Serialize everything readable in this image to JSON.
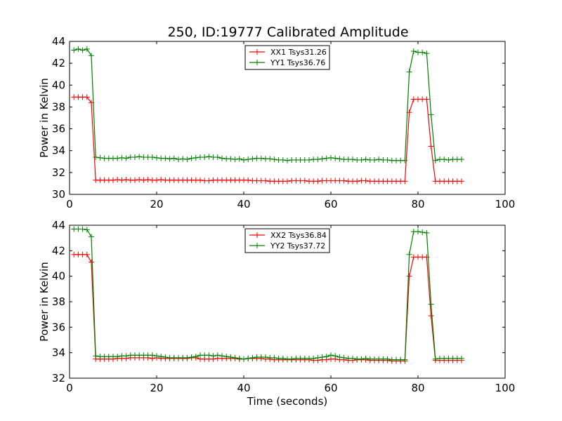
{
  "title": "250, ID:19777 Calibrated Amplitude",
  "chart_data": [
    {
      "type": "line",
      "ylabel": "Power in Kelvin",
      "xlabel": "",
      "xlim": [
        0,
        100
      ],
      "ylim": [
        30,
        44
      ],
      "xticks": [
        0,
        20,
        40,
        60,
        80,
        100
      ],
      "yticks": [
        30,
        32,
        34,
        36,
        38,
        40,
        42,
        44
      ],
      "legend_position": "top-center",
      "series": [
        {
          "name": "XX1 Tsys31.26",
          "color": "#ff0000",
          "x": [
            1,
            2,
            3,
            4,
            5,
            6,
            7,
            8,
            9,
            10,
            11,
            12,
            13,
            14,
            15,
            16,
            17,
            18,
            19,
            20,
            21,
            22,
            23,
            24,
            25,
            26,
            27,
            28,
            29,
            30,
            31,
            32,
            33,
            34,
            35,
            36,
            37,
            38,
            39,
            40,
            41,
            42,
            43,
            44,
            45,
            46,
            47,
            48,
            49,
            50,
            51,
            52,
            53,
            54,
            55,
            56,
            57,
            58,
            59,
            60,
            61,
            62,
            63,
            64,
            65,
            66,
            67,
            68,
            69,
            70,
            71,
            72,
            73,
            74,
            75,
            76,
            77,
            78,
            79,
            80,
            81,
            82,
            83,
            84,
            85,
            86,
            87,
            88,
            89,
            90
          ],
          "y": [
            38.9,
            38.9,
            38.9,
            38.9,
            38.4,
            31.3,
            31.3,
            31.3,
            31.3,
            31.3,
            31.35,
            31.3,
            31.35,
            31.3,
            31.3,
            31.35,
            31.3,
            31.35,
            31.3,
            31.3,
            31.35,
            31.3,
            31.3,
            31.3,
            31.3,
            31.3,
            31.3,
            31.3,
            31.3,
            31.3,
            31.25,
            31.25,
            31.3,
            31.3,
            31.3,
            31.3,
            31.3,
            31.3,
            31.3,
            31.3,
            31.3,
            31.25,
            31.25,
            31.25,
            31.25,
            31.2,
            31.2,
            31.2,
            31.2,
            31.2,
            31.25,
            31.25,
            31.25,
            31.25,
            31.2,
            31.2,
            31.2,
            31.25,
            31.25,
            31.25,
            31.25,
            31.25,
            31.25,
            31.2,
            31.2,
            31.2,
            31.25,
            31.25,
            31.2,
            31.2,
            31.2,
            31.2,
            31.2,
            31.2,
            31.2,
            31.2,
            31.2,
            37.5,
            38.7,
            38.7,
            38.7,
            38.7,
            34.4,
            31.2,
            31.2,
            31.2,
            31.2,
            31.2,
            31.2,
            31.2
          ]
        },
        {
          "name": "YY1 Tsys36.76",
          "color": "#008000",
          "x": [
            1,
            2,
            3,
            4,
            5,
            6,
            7,
            8,
            9,
            10,
            11,
            12,
            13,
            14,
            15,
            16,
            17,
            18,
            19,
            20,
            21,
            22,
            23,
            24,
            25,
            26,
            27,
            28,
            29,
            30,
            31,
            32,
            33,
            34,
            35,
            36,
            37,
            38,
            39,
            40,
            41,
            42,
            43,
            44,
            45,
            46,
            47,
            48,
            49,
            50,
            51,
            52,
            53,
            54,
            55,
            56,
            57,
            58,
            59,
            60,
            61,
            62,
            63,
            64,
            65,
            66,
            67,
            68,
            69,
            70,
            71,
            72,
            73,
            74,
            75,
            76,
            77,
            78,
            79,
            80,
            81,
            82,
            83,
            84,
            85,
            86,
            87,
            88,
            89,
            90
          ],
          "y": [
            43.2,
            43.3,
            43.2,
            43.3,
            42.7,
            33.4,
            33.35,
            33.3,
            33.3,
            33.3,
            33.3,
            33.35,
            33.3,
            33.4,
            33.4,
            33.45,
            33.4,
            33.4,
            33.4,
            33.35,
            33.3,
            33.3,
            33.25,
            33.3,
            33.2,
            33.25,
            33.2,
            33.3,
            33.35,
            33.4,
            33.4,
            33.45,
            33.4,
            33.4,
            33.3,
            33.25,
            33.25,
            33.2,
            33.25,
            33.15,
            33.2,
            33.25,
            33.3,
            33.3,
            33.25,
            33.25,
            33.2,
            33.15,
            33.15,
            33.1,
            33.15,
            33.15,
            33.15,
            33.15,
            33.15,
            33.2,
            33.2,
            33.25,
            33.3,
            33.35,
            33.3,
            33.25,
            33.2,
            33.2,
            33.2,
            33.15,
            33.15,
            33.2,
            33.15,
            33.15,
            33.2,
            33.15,
            33.15,
            33.1,
            33.1,
            33.1,
            33.1,
            41.2,
            43.1,
            43.0,
            43.0,
            42.9,
            37.3,
            33.1,
            33.2,
            33.2,
            33.15,
            33.2,
            33.2,
            33.2
          ]
        }
      ]
    },
    {
      "type": "line",
      "ylabel": "Power in Kelvin",
      "xlabel": "Time (seconds)",
      "xlim": [
        0,
        100
      ],
      "ylim": [
        32,
        44
      ],
      "xticks": [
        0,
        20,
        40,
        60,
        80,
        100
      ],
      "yticks": [
        32,
        34,
        36,
        38,
        40,
        42,
        44
      ],
      "legend_position": "top-center",
      "series": [
        {
          "name": "XX2 Tsys36.84",
          "color": "#ff0000",
          "x": [
            1,
            2,
            3,
            4,
            5,
            6,
            7,
            8,
            9,
            10,
            11,
            12,
            13,
            14,
            15,
            16,
            17,
            18,
            19,
            20,
            21,
            22,
            23,
            24,
            25,
            26,
            27,
            28,
            29,
            30,
            31,
            32,
            33,
            34,
            35,
            36,
            37,
            38,
            39,
            40,
            41,
            42,
            43,
            44,
            45,
            46,
            47,
            48,
            49,
            50,
            51,
            52,
            53,
            54,
            55,
            56,
            57,
            58,
            59,
            60,
            61,
            62,
            63,
            64,
            65,
            66,
            67,
            68,
            69,
            70,
            71,
            72,
            73,
            74,
            75,
            76,
            77,
            78,
            79,
            80,
            81,
            82,
            83,
            84,
            85,
            86,
            87,
            88,
            89,
            90
          ],
          "y": [
            41.7,
            41.7,
            41.7,
            41.7,
            41.1,
            33.5,
            33.5,
            33.5,
            33.5,
            33.5,
            33.55,
            33.55,
            33.55,
            33.6,
            33.6,
            33.6,
            33.6,
            33.6,
            33.55,
            33.6,
            33.55,
            33.55,
            33.55,
            33.55,
            33.55,
            33.55,
            33.55,
            33.6,
            33.6,
            33.5,
            33.5,
            33.5,
            33.5,
            33.55,
            33.55,
            33.55,
            33.55,
            33.55,
            33.5,
            33.5,
            33.55,
            33.55,
            33.55,
            33.55,
            33.5,
            33.5,
            33.45,
            33.45,
            33.45,
            33.45,
            33.45,
            33.45,
            33.45,
            33.45,
            33.45,
            33.4,
            33.4,
            33.45,
            33.45,
            33.5,
            33.5,
            33.45,
            33.45,
            33.4,
            33.4,
            33.45,
            33.45,
            33.45,
            33.4,
            33.4,
            33.4,
            33.4,
            33.4,
            33.35,
            33.35,
            33.35,
            33.35,
            40.0,
            41.5,
            41.5,
            41.5,
            41.5,
            36.9,
            33.4,
            33.4,
            33.4,
            33.4,
            33.4,
            33.4,
            33.4
          ]
        },
        {
          "name": "YY2 Tsys37.72",
          "color": "#008000",
          "x": [
            1,
            2,
            3,
            4,
            5,
            6,
            7,
            8,
            9,
            10,
            11,
            12,
            13,
            14,
            15,
            16,
            17,
            18,
            19,
            20,
            21,
            22,
            23,
            24,
            25,
            26,
            27,
            28,
            29,
            30,
            31,
            32,
            33,
            34,
            35,
            36,
            37,
            38,
            39,
            40,
            41,
            42,
            43,
            44,
            45,
            46,
            47,
            48,
            49,
            50,
            51,
            52,
            53,
            54,
            55,
            56,
            57,
            58,
            59,
            60,
            61,
            62,
            63,
            64,
            65,
            66,
            67,
            68,
            69,
            70,
            71,
            72,
            73,
            74,
            75,
            76,
            77,
            78,
            79,
            80,
            81,
            82,
            83,
            84,
            85,
            86,
            87,
            88,
            89,
            90
          ],
          "y": [
            43.7,
            43.7,
            43.7,
            43.65,
            43.1,
            33.75,
            33.7,
            33.7,
            33.7,
            33.7,
            33.7,
            33.75,
            33.75,
            33.8,
            33.8,
            33.8,
            33.8,
            33.8,
            33.8,
            33.75,
            33.7,
            33.65,
            33.6,
            33.6,
            33.6,
            33.6,
            33.6,
            33.65,
            33.7,
            33.8,
            33.8,
            33.8,
            33.75,
            33.8,
            33.75,
            33.7,
            33.65,
            33.6,
            33.55,
            33.5,
            33.55,
            33.6,
            33.65,
            33.65,
            33.65,
            33.6,
            33.6,
            33.55,
            33.55,
            33.5,
            33.5,
            33.55,
            33.55,
            33.55,
            33.55,
            33.55,
            33.6,
            33.65,
            33.7,
            33.8,
            33.75,
            33.65,
            33.6,
            33.55,
            33.55,
            33.5,
            33.5,
            33.55,
            33.5,
            33.5,
            33.5,
            33.5,
            33.5,
            33.45,
            33.45,
            33.45,
            33.45,
            41.7,
            43.5,
            43.5,
            43.45,
            43.4,
            37.8,
            33.5,
            33.55,
            33.55,
            33.55,
            33.55,
            33.55,
            33.55
          ]
        }
      ]
    }
  ]
}
